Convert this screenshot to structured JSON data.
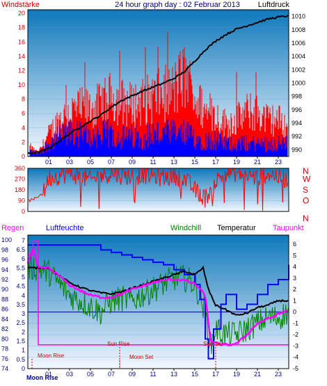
{
  "colors": {
    "wind": "#ff0000",
    "gust": "#0000ff",
    "pressure": "#000000",
    "direction": "#ff0000",
    "rain": "#ff00ff",
    "humidity": "#0000ff",
    "windchill": "#008000",
    "temperature": "#000000",
    "dewpoint": "#ff00ff",
    "sun": "#ff00ff",
    "moon": "#cc0000",
    "bg_top": "#0e78bb",
    "bg_bottom": "#f4f8ff",
    "right_labels": "#cc0000"
  },
  "chart_data": [
    {
      "type": "bar",
      "title": "24 hour graph day : 02 Februar 2013",
      "left_label": "Windstärke",
      "right_label": "Luftdruck",
      "x_tick_labels": [
        "01",
        "03",
        "05",
        "07",
        "09",
        "11",
        "13",
        "15",
        "17",
        "19",
        "21",
        "23"
      ],
      "x_hours": [
        1,
        3,
        5,
        7,
        9,
        11,
        13,
        15,
        17,
        19,
        21,
        23
      ],
      "xlim": [
        -1,
        24
      ],
      "y_left_ticks": [
        0,
        2,
        4,
        6,
        8,
        10,
        12,
        14,
        16,
        18,
        20
      ],
      "ylim_left": [
        0,
        20.5
      ],
      "y_right_ticks": [
        990,
        992,
        994,
        996,
        998,
        1000,
        1002,
        1004,
        1006,
        1008,
        1010
      ],
      "ylim_right": [
        989,
        1011
      ],
      "series": [
        {
          "name": "Windstärke",
          "axis": "left",
          "x": [
            -1,
            0,
            1,
            2,
            3,
            4,
            5,
            6,
            7,
            8,
            9,
            10,
            11,
            12,
            13,
            14,
            15,
            16,
            17,
            18,
            19,
            20,
            21,
            22,
            23,
            24
          ],
          "values": [
            1.5,
            0.5,
            3,
            5,
            6,
            6.5,
            6.5,
            7,
            8,
            7.5,
            7,
            7.5,
            8,
            8.5,
            9,
            11,
            8,
            6,
            5.5,
            4.5,
            5,
            6,
            6,
            5,
            5,
            4
          ]
        },
        {
          "name": "Böen",
          "axis": "left",
          "x": [
            -1,
            0,
            1,
            2,
            3,
            4,
            5,
            6,
            7,
            8,
            9,
            10,
            11,
            12,
            13,
            14,
            15,
            16,
            17,
            18,
            19,
            20,
            21,
            22,
            23,
            24
          ],
          "values": [
            1,
            0.5,
            2,
            3,
            3.5,
            3.5,
            3,
            3.5,
            3.5,
            3,
            3,
            3,
            3.5,
            3.5,
            3.5,
            3.5,
            3,
            2.5,
            2.5,
            2,
            2,
            2,
            2,
            2,
            2,
            2
          ]
        },
        {
          "name": "Luftdruck",
          "axis": "right",
          "x": [
            -1,
            0,
            1,
            2,
            3,
            4,
            5,
            6,
            7,
            8,
            9,
            10,
            11,
            12,
            13,
            14,
            15,
            16,
            17,
            18,
            19,
            20,
            21,
            22,
            23,
            24
          ],
          "values": [
            989.5,
            989.6,
            990.2,
            991.3,
            992.4,
            993.4,
            994.3,
            995.2,
            996.4,
            997.4,
            998.1,
            998.8,
            999.4,
            1000.0,
            1000.7,
            1001.7,
            1003.3,
            1005.0,
            1006.3,
            1007.3,
            1008.1,
            1008.6,
            1009.1,
            1009.6,
            1009.9,
            1010.1
          ]
        }
      ]
    },
    {
      "type": "bar",
      "y_left_ticks": [
        0,
        90,
        180,
        270,
        360
      ],
      "ylim": [
        0,
        360
      ],
      "compass_labels": [
        "N",
        "W",
        "S",
        "O",
        "N"
      ],
      "series": [
        {
          "name": "Windrichtung",
          "x": [
            -1,
            -0.5,
            0,
            0.5,
            1,
            2,
            3,
            4,
            5,
            6,
            7,
            8,
            9,
            10,
            11,
            12,
            13,
            14,
            15,
            16,
            17,
            18,
            19,
            20,
            21,
            22,
            23,
            24
          ],
          "values": [
            90,
            95,
            130,
            150,
            280,
            300,
            320,
            290,
            260,
            300,
            320,
            300,
            290,
            310,
            300,
            280,
            300,
            270,
            180,
            110,
            250,
            330,
            320,
            300,
            280,
            320,
            290,
            260
          ]
        }
      ]
    },
    {
      "type": "line",
      "left_labels": [
        "Regen",
        "Luftfeuchte"
      ],
      "right_labels": [
        "Windchill",
        "Temperatur",
        "Taupunkt"
      ],
      "x_tick_labels": [
        "01",
        "03",
        "05",
        "07",
        "09",
        "11",
        "13",
        "15",
        "17",
        "19",
        "21",
        "23"
      ],
      "x_hours": [
        1,
        3,
        5,
        7,
        9,
        11,
        13,
        15,
        17,
        19,
        21,
        23
      ],
      "xlim": [
        -1,
        24
      ],
      "humidity_ticks": [
        74,
        76,
        78,
        80,
        82,
        84,
        86,
        88,
        90,
        92,
        94,
        96,
        98,
        100
      ],
      "humidity_lim": [
        74,
        101
      ],
      "rain_ticks": [
        0,
        0.5,
        1,
        1.5,
        2,
        2.5,
        3,
        3.5,
        4,
        4.5,
        5,
        5.5,
        6,
        6.5,
        7
      ],
      "rain_lim": [
        0,
        7.3
      ],
      "temp_ticks": [
        -5,
        -4,
        -3,
        -2,
        -1,
        0,
        1,
        2,
        3,
        4,
        5,
        6
      ],
      "temp_lim": [
        -5,
        6.8
      ],
      "series": [
        {
          "name": "Luftfeuchte",
          "axis": "humidity",
          "x": [
            -1,
            0,
            1,
            2,
            3,
            4,
            5,
            6,
            7,
            8,
            9,
            10,
            11,
            12,
            13,
            14,
            15,
            15.5,
            16,
            16.3,
            16.8,
            17.5,
            18,
            19,
            20,
            21,
            22,
            23,
            24
          ],
          "values": [
            99,
            99,
            99,
            99,
            99,
            99,
            99,
            98,
            97.5,
            97,
            96.5,
            96,
            95.5,
            95,
            94,
            93,
            91,
            88,
            80,
            76,
            82,
            87,
            89,
            86,
            87,
            89,
            91,
            92,
            95
          ]
        },
        {
          "name": "Regen",
          "axis": "rain",
          "x": [
            -1,
            -0.5,
            0,
            1,
            2,
            3,
            4,
            5,
            6,
            7,
            8,
            9,
            10,
            11,
            12,
            13,
            14,
            15,
            16,
            17,
            18,
            19,
            20,
            21,
            22,
            23,
            24
          ],
          "values": [
            6.2,
            7.0,
            1.3,
            1.3,
            1.3,
            1.3,
            1.3,
            1.3,
            1.3,
            1.3,
            1.3,
            1.3,
            1.3,
            1.3,
            1.3,
            1.3,
            1.3,
            1.3,
            1.3,
            1.3,
            1.3,
            1.3,
            1.3,
            1.3,
            1.3,
            1.3,
            1.3
          ]
        },
        {
          "name": "Windchill",
          "axis": "temp",
          "x": [
            -1,
            0,
            1,
            2,
            3,
            4,
            5,
            6,
            7,
            8,
            9,
            10,
            11,
            12,
            13,
            14,
            15,
            16,
            16.5,
            17,
            18,
            19,
            20,
            21,
            22,
            23,
            24
          ],
          "values": [
            3.9,
            3.9,
            3.5,
            2.5,
            1.5,
            1.0,
            0.5,
            0.0,
            1.0,
            1.2,
            1.0,
            1.5,
            2.0,
            2.5,
            3.0,
            3.0,
            2.5,
            0.0,
            -3.0,
            -1.5,
            -2.0,
            -2.0,
            -1.5,
            -1.0,
            -0.5,
            -0.5,
            0.0
          ]
        },
        {
          "name": "Temperatur",
          "axis": "temp",
          "x": [
            -1,
            0,
            1,
            2,
            3,
            4,
            5,
            6,
            7,
            8,
            9,
            10,
            11,
            12,
            13,
            14,
            15,
            15.8,
            16.3,
            17,
            18,
            19,
            20,
            21,
            22,
            23,
            24
          ],
          "values": [
            3.9,
            3.9,
            3.9,
            3.2,
            2.6,
            2.2,
            1.9,
            1.7,
            1.6,
            1.8,
            2.1,
            2.4,
            2.7,
            3.0,
            3.3,
            3.6,
            3.3,
            3.9,
            2.0,
            0.6,
            0.2,
            -0.3,
            -0.1,
            0.4,
            0.6,
            1.0,
            1.0
          ]
        },
        {
          "name": "Taupunkt",
          "axis": "temp",
          "x": [
            -1,
            -0.5,
            0,
            1,
            2,
            3,
            4,
            5,
            6,
            7,
            8,
            9,
            10,
            11,
            12,
            13,
            14,
            15,
            16,
            16.5,
            17,
            18,
            19,
            20,
            21,
            22,
            23,
            24
          ],
          "values": [
            4.3,
            5.6,
            3.9,
            3.9,
            3.2,
            2.4,
            1.9,
            1.5,
            1.3,
            1.3,
            1.6,
            2.0,
            2.3,
            2.6,
            2.8,
            2.9,
            2.8,
            2.5,
            1.5,
            -2.5,
            -2.8,
            -2.9,
            -2.8,
            -2.0,
            -1.0,
            -0.6,
            -0.2,
            0.2
          ]
        }
      ],
      "events": [
        {
          "label": "Moon Rise",
          "hour": -0.6
        },
        {
          "label": "Sun Rise",
          "hour": 7.8
        },
        {
          "label": "Moon Set",
          "hour": 7.8
        },
        {
          "label": "Sun Set",
          "hour": 17.0
        }
      ],
      "bottom_label": "Moon Rise"
    }
  ]
}
